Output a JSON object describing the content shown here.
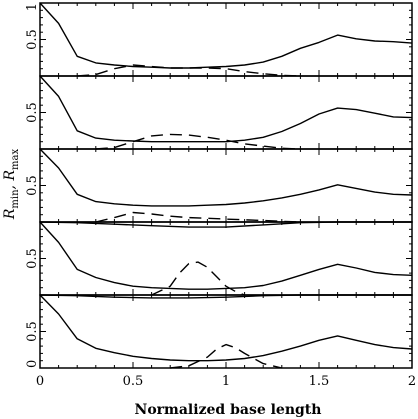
{
  "chart_data": {
    "type": "line",
    "xlabel": "Normalized base length",
    "ylabel": {
      "main": "R",
      "sub1": "min",
      "sep": ", ",
      "sub2": "max"
    },
    "xlim": [
      0,
      2
    ],
    "ylim": [
      0,
      1
    ],
    "x_ticks": [
      0,
      0.5,
      1,
      1.5,
      2
    ],
    "x_tick_labels": [
      "0",
      "0.5",
      "1",
      "1.5",
      "2"
    ],
    "y_ticks_labeled": [
      0,
      0.5,
      1
    ],
    "y_tick_labels": {
      "top_panel": [
        "1",
        "0.5"
      ],
      "middle_panels": [
        "0.5"
      ],
      "bottom_panel": [
        "0",
        "0.5"
      ]
    },
    "grid": false,
    "panels": [
      {
        "series": [
          {
            "style": "solid",
            "x": [
              0,
              0.1,
              0.2,
              0.3,
              0.4,
              0.5,
              0.6,
              0.7,
              0.8,
              0.9,
              1.0,
              1.1,
              1.2,
              1.3,
              1.4,
              1.5,
              1.6,
              1.7,
              1.8,
              1.9,
              2.0
            ],
            "y": [
              1.0,
              0.72,
              0.27,
              0.18,
              0.15,
              0.13,
              0.12,
              0.11,
              0.11,
              0.12,
              0.13,
              0.15,
              0.19,
              0.27,
              0.38,
              0.46,
              0.56,
              0.51,
              0.48,
              0.47,
              0.45
            ]
          },
          {
            "style": "dashed",
            "x": [
              0.2,
              0.3,
              0.4,
              0.5,
              0.6,
              0.7,
              0.8,
              0.9,
              1.0,
              1.1,
              1.2,
              1.3,
              1.4
            ],
            "y": [
              0.0,
              0.02,
              0.1,
              0.15,
              0.13,
              0.11,
              0.11,
              0.11,
              0.1,
              0.06,
              0.03,
              0.01,
              0.0
            ]
          }
        ]
      },
      {
        "series": [
          {
            "style": "solid",
            "x": [
              0,
              0.1,
              0.2,
              0.3,
              0.4,
              0.5,
              0.6,
              0.7,
              0.8,
              0.9,
              1.0,
              1.1,
              1.2,
              1.3,
              1.4,
              1.5,
              1.6,
              1.7,
              1.8,
              1.9,
              2.0
            ],
            "y": [
              1.0,
              0.72,
              0.25,
              0.15,
              0.12,
              0.11,
              0.1,
              0.1,
              0.1,
              0.1,
              0.1,
              0.12,
              0.16,
              0.24,
              0.35,
              0.48,
              0.56,
              0.54,
              0.49,
              0.44,
              0.43
            ]
          },
          {
            "style": "dashed",
            "x": [
              0.3,
              0.4,
              0.5,
              0.6,
              0.7,
              0.8,
              0.9,
              1.0,
              1.1,
              1.2,
              1.3,
              1.4
            ],
            "y": [
              0.0,
              0.02,
              0.1,
              0.18,
              0.2,
              0.19,
              0.16,
              0.12,
              0.07,
              0.04,
              0.01,
              0.0
            ]
          }
        ]
      },
      {
        "series": [
          {
            "style": "solid",
            "x": [
              0,
              0.1,
              0.2,
              0.3,
              0.4,
              0.5,
              0.6,
              0.7,
              0.8,
              0.9,
              1.0,
              1.1,
              1.2,
              1.3,
              1.4,
              1.5,
              1.6,
              1.7,
              1.8,
              1.9,
              2.0
            ],
            "y": [
              1.0,
              0.74,
              0.38,
              0.28,
              0.25,
              0.23,
              0.22,
              0.22,
              0.22,
              0.23,
              0.24,
              0.26,
              0.29,
              0.33,
              0.38,
              0.44,
              0.51,
              0.46,
              0.41,
              0.38,
              0.37
            ]
          },
          {
            "style": "dashed",
            "x": [
              0.3,
              0.4,
              0.5,
              0.6,
              0.7,
              0.8,
              0.9,
              1.0,
              1.1,
              1.2,
              1.3,
              1.4
            ],
            "y": [
              0.0,
              0.06,
              0.13,
              0.11,
              0.08,
              0.06,
              0.05,
              0.04,
              0.03,
              0.02,
              0.01,
              0.0
            ]
          }
        ]
      },
      {
        "series": [
          {
            "style": "solid",
            "x": [
              0,
              0.2,
              0.4,
              0.6,
              0.8,
              1.0,
              1.2,
              1.4,
              1.6,
              1.8,
              2.0
            ],
            "y": [
              1.0,
              0.99,
              0.97,
              0.95,
              0.93,
              0.93,
              0.96,
              0.99,
              1.0,
              1.0,
              1.0
            ]
          },
          {
            "style": "solid",
            "x": [
              0,
              0.1,
              0.2,
              0.3,
              0.4,
              0.5,
              0.6,
              0.7,
              0.8,
              0.9,
              1.0,
              1.1,
              1.2,
              1.3,
              1.4,
              1.5,
              1.6,
              1.7,
              1.8,
              1.9,
              2.0
            ],
            "y": [
              1.0,
              0.72,
              0.35,
              0.24,
              0.17,
              0.12,
              0.1,
              0.09,
              0.08,
              0.08,
              0.09,
              0.1,
              0.13,
              0.19,
              0.27,
              0.35,
              0.42,
              0.37,
              0.31,
              0.28,
              0.27
            ]
          },
          {
            "style": "dashed",
            "x": [
              0.6,
              0.7,
              0.75,
              0.8,
              0.85,
              0.9,
              0.95,
              1.0,
              1.05,
              1.1
            ],
            "y": [
              0.0,
              0.12,
              0.3,
              0.43,
              0.45,
              0.38,
              0.25,
              0.12,
              0.05,
              0.0
            ]
          }
        ]
      },
      {
        "series": [
          {
            "style": "solid",
            "x": [
              0,
              0.2,
              0.4,
              0.6,
              0.8,
              1.0,
              1.2,
              1.4,
              1.6,
              1.8,
              2.0
            ],
            "y": [
              1.0,
              0.99,
              0.97,
              0.96,
              0.96,
              0.97,
              0.99,
              1.0,
              1.0,
              1.0,
              1.0
            ]
          },
          {
            "style": "solid",
            "x": [
              0,
              0.1,
              0.2,
              0.3,
              0.4,
              0.5,
              0.6,
              0.7,
              0.8,
              0.9,
              1.0,
              1.1,
              1.2,
              1.3,
              1.4,
              1.5,
              1.6,
              1.7,
              1.8,
              1.9,
              2.0
            ],
            "y": [
              1.0,
              0.74,
              0.4,
              0.27,
              0.21,
              0.16,
              0.13,
              0.11,
              0.1,
              0.1,
              0.11,
              0.13,
              0.17,
              0.23,
              0.3,
              0.38,
              0.44,
              0.38,
              0.32,
              0.28,
              0.26
            ]
          },
          {
            "style": "dashed",
            "x": [
              0.7,
              0.8,
              0.9,
              0.95,
              1.0,
              1.05,
              1.1,
              1.2,
              1.3
            ],
            "y": [
              0.0,
              0.03,
              0.15,
              0.26,
              0.32,
              0.28,
              0.2,
              0.06,
              0.0
            ]
          }
        ]
      }
    ]
  }
}
